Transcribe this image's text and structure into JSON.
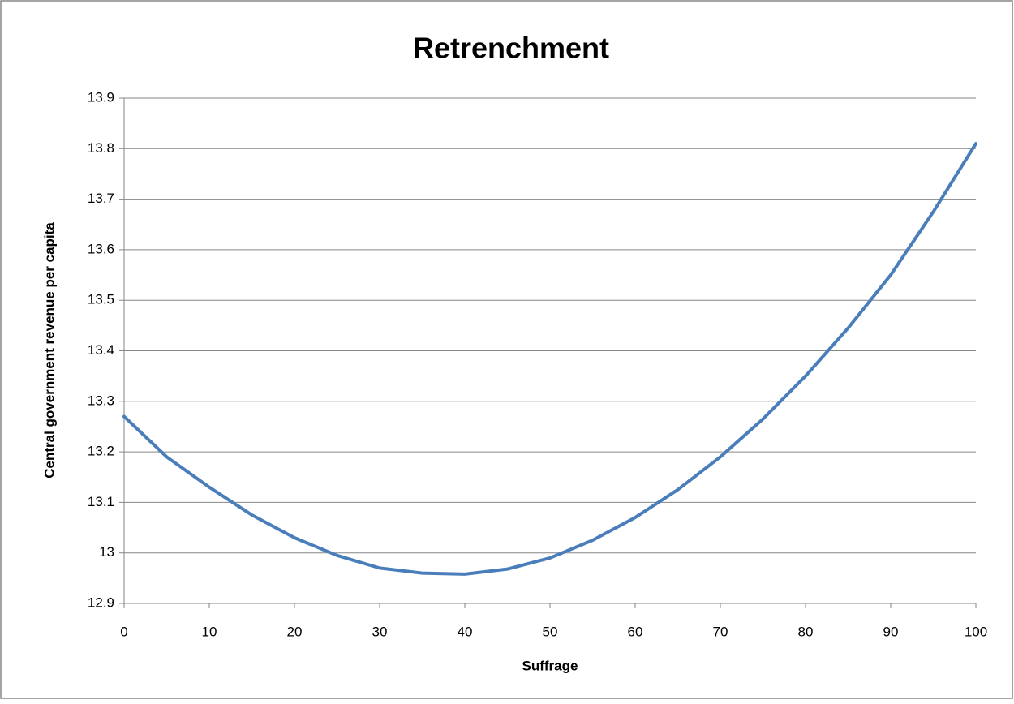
{
  "chart_data": {
    "type": "line",
    "title": "Retrenchment",
    "xlabel": "Suffrage",
    "ylabel": "Central government revenue per capita",
    "x": [
      0,
      5,
      10,
      15,
      20,
      25,
      30,
      35,
      40,
      45,
      50,
      55,
      60,
      65,
      70,
      75,
      80,
      85,
      90,
      95,
      100
    ],
    "series": [
      {
        "name": "Retrenchment",
        "color": "#4a7ebb",
        "values": [
          13.27,
          13.19,
          13.13,
          13.075,
          13.03,
          12.995,
          12.97,
          12.96,
          12.958,
          12.968,
          12.99,
          13.025,
          13.07,
          13.125,
          13.19,
          13.265,
          13.35,
          13.445,
          13.55,
          13.675,
          13.81
        ]
      }
    ],
    "xlim": [
      0,
      100
    ],
    "xticks": [
      0,
      10,
      20,
      30,
      40,
      50,
      60,
      70,
      80,
      90,
      100
    ],
    "ylim": [
      12.9,
      13.9
    ],
    "yticks": [
      12.9,
      13,
      13.1,
      13.2,
      13.3,
      13.4,
      13.5,
      13.6,
      13.7,
      13.8,
      13.9
    ],
    "grid": true
  }
}
